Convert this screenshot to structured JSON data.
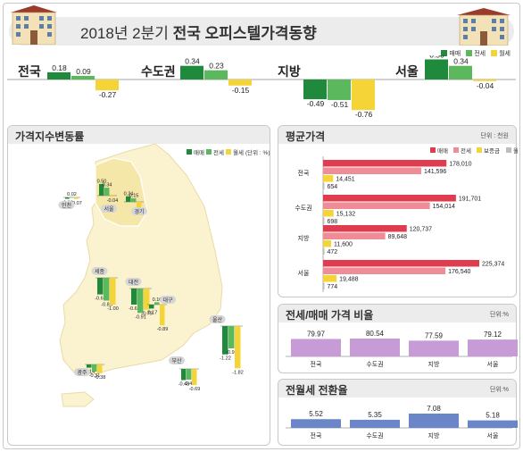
{
  "header": {
    "title_prefix": "2018년 2분기 ",
    "title_bold": "전국 오피스텔가격동향"
  },
  "colors": {
    "sale": "#1f8a3b",
    "jeonse": "#5cb85c",
    "monthly": "#f5d437",
    "avg_sale": "#e03c50",
    "avg_jeonse": "#f08c96",
    "avg_deposit": "#f5d437",
    "avg_monthly": "#bdbdbd",
    "ratio": "#c79bd6",
    "conv": "#6a86c8"
  },
  "top_legend": [
    "매매",
    "전세",
    "월세"
  ],
  "chart_data": [
    {
      "type": "bar",
      "categories": [
        "전국",
        "수도권",
        "지방",
        "서울"
      ],
      "series": [
        {
          "name": "매매",
          "values": [
            0.18,
            0.34,
            -0.49,
            0.5
          ]
        },
        {
          "name": "전세",
          "values": [
            0.09,
            0.23,
            -0.51,
            0.34
          ]
        },
        {
          "name": "월세",
          "values": [
            -0.27,
            -0.15,
            -0.76,
            -0.04
          ]
        }
      ]
    },
    {
      "type": "bar",
      "title": "가격지수변동률",
      "legend": [
        "매매",
        "전세",
        "월세"
      ],
      "legend_unit": "(단위 : %)",
      "categories": [
        "인천",
        "서울",
        "경기",
        "세종",
        "대전",
        "대구",
        "울산",
        "광주",
        "부산"
      ],
      "series": [
        {
          "name": "매매",
          "values": [
            -0.06,
            0.5,
            0.24,
            -0.62,
            -0.6,
            -0.17,
            -1.22,
            -0.14,
            -0.48
          ]
        },
        {
          "name": "전세",
          "values": [
            0.02,
            0.34,
            0.15,
            -0.85,
            -0.91,
            0.1,
            -0.96,
            -0.31,
            -0.46
          ]
        },
        {
          "name": "월세",
          "values": [
            -0.07,
            -0.04,
            -0.33,
            -1.0,
            -0.79,
            -0.89,
            -1.82,
            -0.38,
            -0.69
          ]
        }
      ]
    },
    {
      "type": "bar",
      "title": "평균가격",
      "unit": "단위 : 천원",
      "legend": [
        "매매",
        "전세",
        "보증금",
        "월세"
      ],
      "categories": [
        "전국",
        "수도권",
        "지방",
        "서울"
      ],
      "series": [
        {
          "name": "매매",
          "values": [
            178010,
            191701,
            120737,
            225374
          ]
        },
        {
          "name": "전세",
          "values": [
            141596,
            154014,
            89648,
            176540
          ]
        },
        {
          "name": "보증금",
          "values": [
            14451,
            15132,
            11600,
            19488
          ]
        },
        {
          "name": "월세",
          "values": [
            654,
            698,
            472,
            774
          ]
        }
      ],
      "labels": {
        "매매": [
          "178,010",
          "191,701",
          "120,737",
          "225,374"
        ],
        "전세": [
          "141,596",
          "154,014",
          "89,648",
          "176,540"
        ],
        "보증금": [
          "14,451",
          "15,132",
          "11,600",
          "19,488"
        ],
        "월세": [
          "654",
          "698",
          "472",
          "774"
        ]
      }
    },
    {
      "type": "bar",
      "title": "전세/매매 가격 비율",
      "unit": "단위:%",
      "categories": [
        "전국",
        "수도권",
        "지방",
        "서울"
      ],
      "values": [
        79.97,
        80.54,
        77.59,
        79.12
      ]
    },
    {
      "type": "bar",
      "title": "전월세 전환율",
      "unit": "단위:%",
      "categories": [
        "전국",
        "수도권",
        "지방",
        "서울"
      ],
      "values": [
        5.52,
        5.35,
        7.08,
        5.18
      ]
    }
  ]
}
